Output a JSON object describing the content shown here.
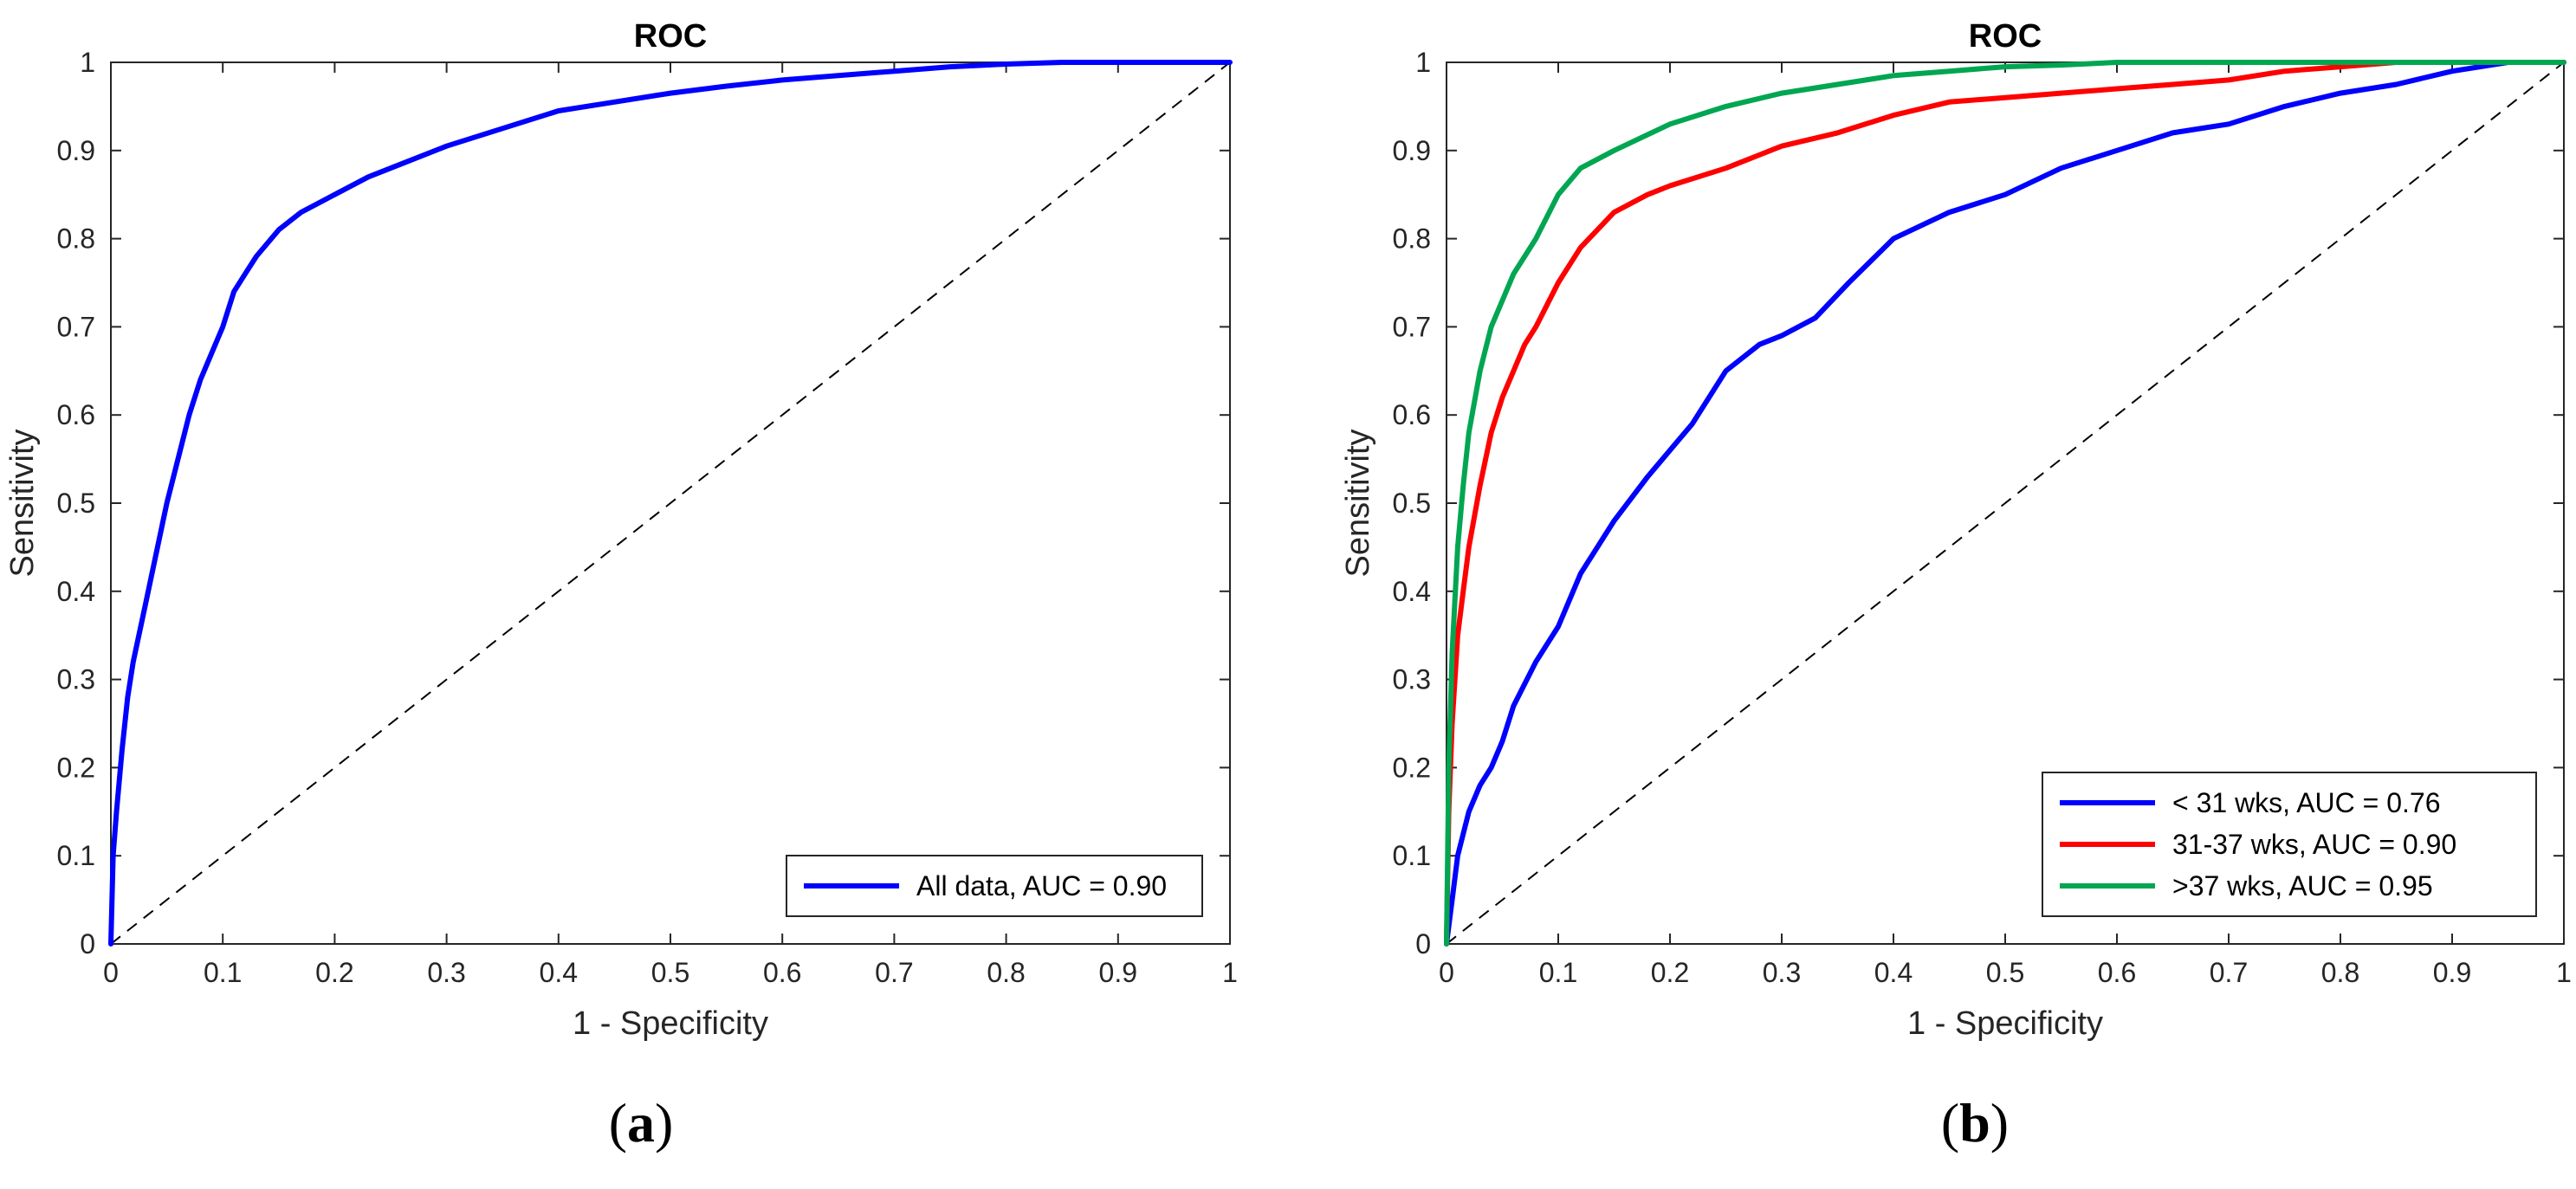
{
  "chart_data": [
    {
      "type": "line",
      "panel_label": "a",
      "title": "ROC",
      "xlabel": "1 - Specificity",
      "ylabel": "Sensitivity",
      "xlim": [
        0,
        1
      ],
      "ylim": [
        0,
        1
      ],
      "xticks": [
        "0",
        "0.1",
        "0.2",
        "0.3",
        "0.4",
        "0.5",
        "0.6",
        "0.7",
        "0.8",
        "0.9",
        "1"
      ],
      "yticks": [
        "0",
        "0.1",
        "0.2",
        "0.3",
        "0.4",
        "0.5",
        "0.6",
        "0.7",
        "0.8",
        "0.9",
        "1"
      ],
      "grid": false,
      "legend_position": "bottom-right",
      "reference_line": "diagonal dashed",
      "series": [
        {
          "name": "All data, AUC = 0.90",
          "color": "#0000ff",
          "x": [
            0,
            0.002,
            0.005,
            0.01,
            0.015,
            0.02,
            0.03,
            0.04,
            0.05,
            0.06,
            0.07,
            0.08,
            0.09,
            0.1,
            0.11,
            0.12,
            0.13,
            0.15,
            0.17,
            0.2,
            0.23,
            0.26,
            0.3,
            0.35,
            0.4,
            0.45,
            0.5,
            0.55,
            0.6,
            0.65,
            0.7,
            0.75,
            0.8,
            0.85,
            0.9,
            0.95,
            1.0
          ],
          "y": [
            0,
            0.1,
            0.15,
            0.22,
            0.28,
            0.32,
            0.38,
            0.44,
            0.5,
            0.55,
            0.6,
            0.64,
            0.67,
            0.7,
            0.74,
            0.76,
            0.78,
            0.81,
            0.83,
            0.85,
            0.87,
            0.885,
            0.905,
            0.925,
            0.945,
            0.955,
            0.965,
            0.973,
            0.98,
            0.985,
            0.99,
            0.995,
            0.998,
            1.0,
            1.0,
            1.0,
            1.0
          ]
        }
      ]
    },
    {
      "type": "line",
      "panel_label": "b",
      "title": "ROC",
      "xlabel": "1 - Specificity",
      "ylabel": "Sensitivity",
      "xlim": [
        0,
        1
      ],
      "ylim": [
        0,
        1
      ],
      "xticks": [
        "0",
        "0.1",
        "0.2",
        "0.3",
        "0.4",
        "0.5",
        "0.6",
        "0.7",
        "0.8",
        "0.9",
        "1"
      ],
      "yticks": [
        "0",
        "0.1",
        "0.2",
        "0.3",
        "0.4",
        "0.5",
        "0.6",
        "0.7",
        "0.8",
        "0.9",
        "1"
      ],
      "grid": false,
      "legend_position": "bottom-right",
      "reference_line": "diagonal dashed",
      "series": [
        {
          "name": "< 31 wks, AUC = 0.76",
          "color": "#0000ff",
          "x": [
            0,
            0.005,
            0.01,
            0.02,
            0.03,
            0.04,
            0.05,
            0.06,
            0.08,
            0.1,
            0.12,
            0.15,
            0.18,
            0.2,
            0.22,
            0.25,
            0.28,
            0.3,
            0.33,
            0.36,
            0.4,
            0.45,
            0.5,
            0.55,
            0.6,
            0.65,
            0.7,
            0.75,
            0.8,
            0.85,
            0.9,
            0.95,
            1.0
          ],
          "y": [
            0,
            0.05,
            0.1,
            0.15,
            0.18,
            0.2,
            0.23,
            0.27,
            0.32,
            0.36,
            0.42,
            0.48,
            0.53,
            0.56,
            0.59,
            0.65,
            0.68,
            0.69,
            0.71,
            0.75,
            0.8,
            0.83,
            0.85,
            0.88,
            0.9,
            0.92,
            0.93,
            0.95,
            0.965,
            0.975,
            0.99,
            1.0,
            1.0
          ]
        },
        {
          "name": "31-37 wks, AUC = 0.90",
          "color": "#ff0000",
          "x": [
            0,
            0.002,
            0.005,
            0.01,
            0.015,
            0.02,
            0.03,
            0.04,
            0.05,
            0.06,
            0.07,
            0.08,
            0.1,
            0.12,
            0.15,
            0.18,
            0.2,
            0.25,
            0.3,
            0.35,
            0.4,
            0.45,
            0.5,
            0.55,
            0.6,
            0.65,
            0.7,
            0.75,
            0.8,
            0.85,
            0.9,
            0.95,
            1.0
          ],
          "y": [
            0,
            0.15,
            0.25,
            0.35,
            0.4,
            0.45,
            0.52,
            0.58,
            0.62,
            0.65,
            0.68,
            0.7,
            0.75,
            0.79,
            0.83,
            0.85,
            0.86,
            0.88,
            0.905,
            0.92,
            0.94,
            0.955,
            0.96,
            0.965,
            0.97,
            0.975,
            0.98,
            0.99,
            0.995,
            1.0,
            1.0,
            1.0,
            1.0
          ]
        },
        {
          "name": ">37 wks, AUC = 0.95",
          "color": "#00a651",
          "x": [
            0,
            0.002,
            0.005,
            0.01,
            0.015,
            0.02,
            0.03,
            0.04,
            0.05,
            0.06,
            0.07,
            0.08,
            0.1,
            0.12,
            0.15,
            0.2,
            0.25,
            0.3,
            0.35,
            0.4,
            0.45,
            0.5,
            0.55,
            0.6,
            0.65,
            0.7,
            0.75,
            0.8,
            0.85,
            0.9,
            0.95,
            1.0
          ],
          "y": [
            0,
            0.2,
            0.33,
            0.45,
            0.52,
            0.58,
            0.65,
            0.7,
            0.73,
            0.76,
            0.78,
            0.8,
            0.85,
            0.88,
            0.9,
            0.93,
            0.95,
            0.965,
            0.975,
            0.985,
            0.99,
            0.995,
            0.997,
            1.0,
            1.0,
            1.0,
            1.0,
            1.0,
            1.0,
            1.0,
            1.0,
            1.0
          ]
        }
      ]
    }
  ]
}
